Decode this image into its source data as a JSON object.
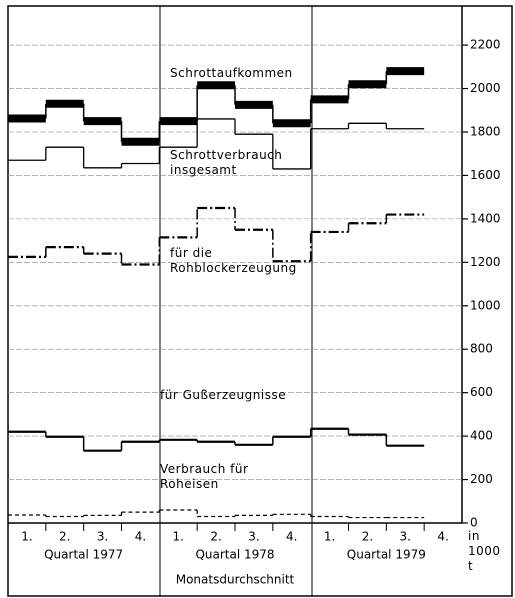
{
  "chart_data": {
    "type": "step",
    "categories": [
      "1.",
      "2.",
      "3.",
      "4.",
      "1.",
      "2.",
      "3.",
      "4.",
      "1.",
      "2.",
      "3.",
      "4."
    ],
    "year_labels": [
      "Quartal 1977",
      "Quartal 1978",
      "Quartal 1979"
    ],
    "xlabel": "Monatsdurchschnitt",
    "unit_label": "in 1000 t",
    "ylim": [
      0,
      2380
    ],
    "yticks": [
      0,
      200,
      400,
      600,
      800,
      1000,
      1200,
      1400,
      1600,
      1800,
      2000,
      2200
    ],
    "grid": true,
    "series": [
      {
        "name": "Schrottaufkommen",
        "color": "#000000",
        "line_style": "thick",
        "values": [
          1862,
          1930,
          1850,
          1755,
          1850,
          2015,
          1925,
          1840,
          1950,
          2020,
          2080,
          null
        ]
      },
      {
        "name": "Schrottverbrauch insgesamt",
        "color": "#000000",
        "line_style": "thin",
        "values": [
          1670,
          1730,
          1635,
          1655,
          1730,
          1860,
          1790,
          1630,
          1815,
          1840,
          1815,
          null
        ]
      },
      {
        "name": "für die Rohblockerzeugung",
        "color": "#000000",
        "line_style": "dashdot",
        "values": [
          1225,
          1270,
          1240,
          1190,
          1315,
          1450,
          1350,
          1205,
          1340,
          1380,
          1420,
          null
        ]
      },
      {
        "name": "für Gußerzeugnisse",
        "color": "#000000",
        "line_style": "medium",
        "values": [
          420,
          397,
          333,
          374,
          383,
          374,
          360,
          397,
          434,
          407,
          356,
          null
        ]
      },
      {
        "name": "Verbrauch für Roheisen",
        "color": "#000000",
        "line_style": "dashed",
        "values": [
          37,
          30,
          35,
          50,
          60,
          30,
          35,
          40,
          30,
          25,
          25,
          null
        ]
      }
    ]
  }
}
